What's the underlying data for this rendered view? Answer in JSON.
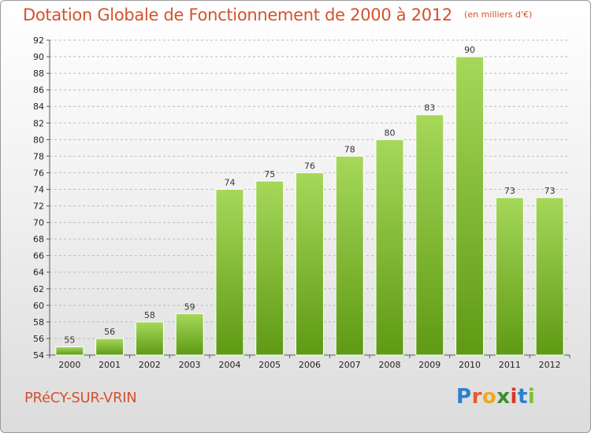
{
  "header": {
    "title": "Dotation Globale de Fonctionnement de 2000 à 2012",
    "subtitle": "(en milliers d'€)"
  },
  "footer": {
    "commune": "PRéCY-SUR-VRIN",
    "logo": {
      "letters": [
        "P",
        "r",
        "o",
        "x",
        "i",
        "t",
        "i"
      ],
      "text": "Proxiti"
    }
  },
  "colors": {
    "title": "#d4522d",
    "bar_top": "#a6d85a",
    "bar_bottom": "#5e9a14",
    "grid": "#bbbbbb"
  },
  "chart_data": {
    "type": "bar",
    "title": "Dotation Globale de Fonctionnement de 2000 à 2012",
    "subtitle": "(en milliers d'€)",
    "categories": [
      "2000",
      "2001",
      "2002",
      "2003",
      "2004",
      "2005",
      "2006",
      "2007",
      "2008",
      "2009",
      "2010",
      "2011",
      "2012"
    ],
    "values": [
      55,
      56,
      58,
      59,
      74,
      75,
      76,
      78,
      80,
      83,
      90,
      73,
      73
    ],
    "xlabel": "",
    "ylabel": "",
    "ylim": [
      54,
      92
    ],
    "yticks": [
      54,
      56,
      58,
      60,
      62,
      64,
      66,
      68,
      70,
      72,
      74,
      76,
      78,
      80,
      82,
      84,
      86,
      88,
      90,
      92
    ],
    "grid": "horizontal-dashed",
    "data_labels": true
  }
}
